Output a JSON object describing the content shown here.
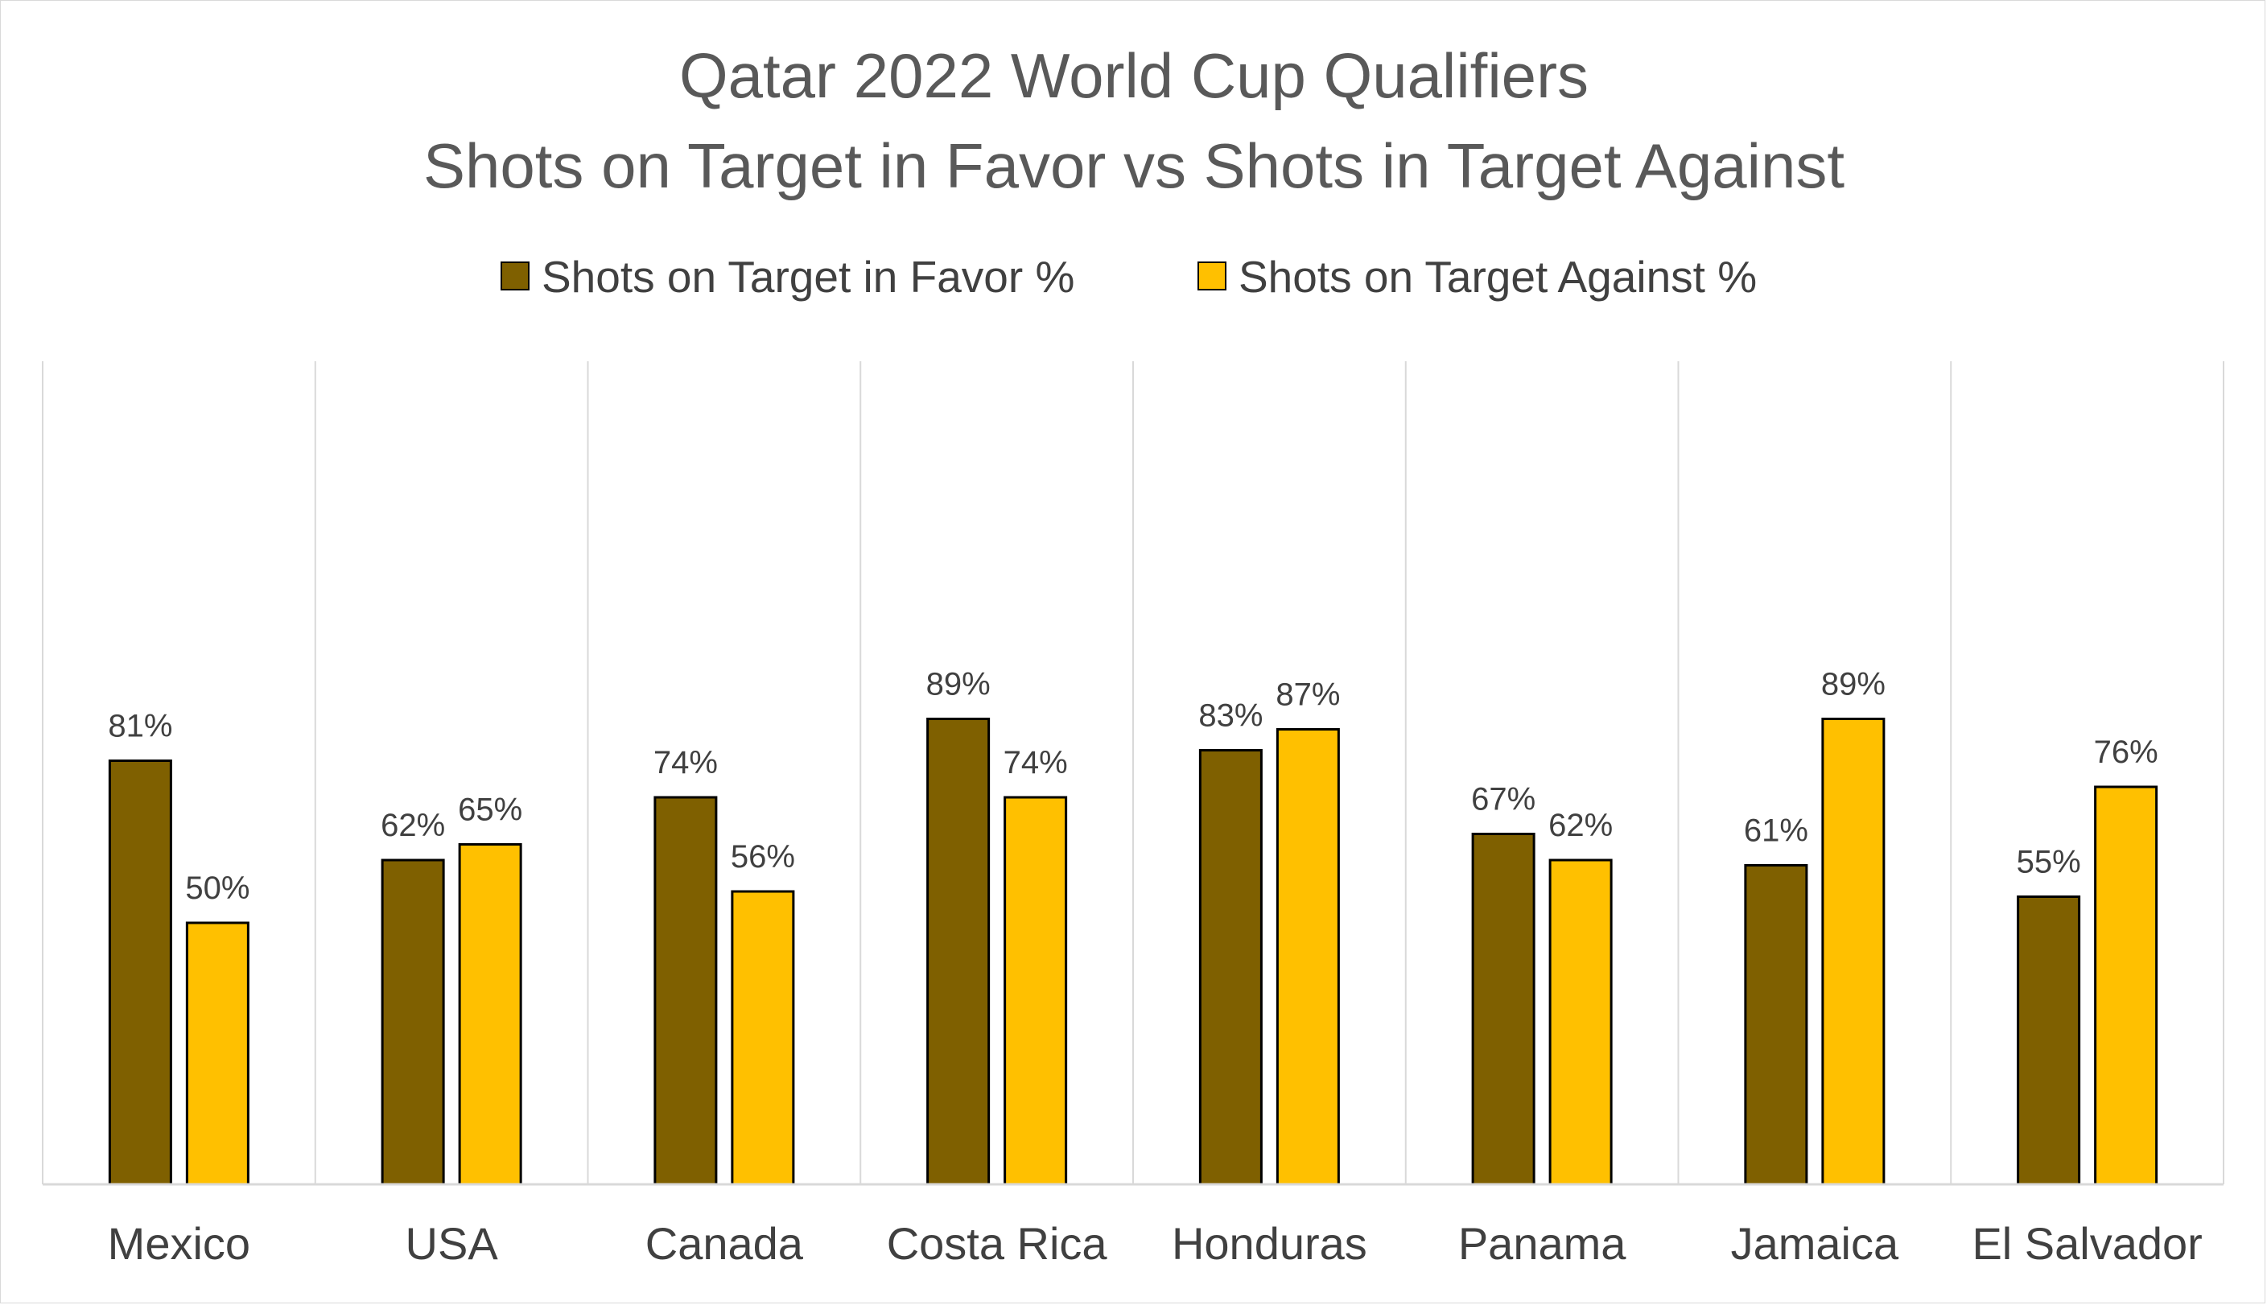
{
  "chart_data": {
    "type": "bar",
    "title": "Qatar 2022 World Cup Qualifiers",
    "subtitle": "Shots on Target in Favor vs Shots in Target Against",
    "categories": [
      "Mexico",
      "USA",
      "Canada",
      "Costa Rica",
      "Honduras",
      "Panama",
      "Jamaica",
      "El Salvador"
    ],
    "series": [
      {
        "name": "Shots on Target in Favor %",
        "values": [
          81,
          62,
          74,
          89,
          83,
          67,
          61,
          55
        ],
        "labels": [
          "81%",
          "62%",
          "74%",
          "89%",
          "83%",
          "67%",
          "61%",
          "55%"
        ],
        "color": "#7f6000"
      },
      {
        "name": "Shots on Target Against %",
        "values": [
          50,
          65,
          56,
          74,
          87,
          62,
          89,
          76
        ],
        "labels": [
          "50%",
          "65%",
          "56%",
          "74%",
          "87%",
          "62%",
          "89%",
          "76%"
        ],
        "color": "#ffc000"
      }
    ],
    "ylim": [
      0,
      100
    ],
    "grid": "vertical category separators",
    "legend": "top-center",
    "bar_outline_color": "#000000"
  }
}
